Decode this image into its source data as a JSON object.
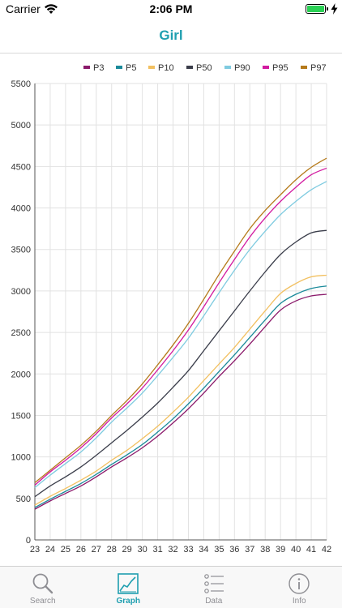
{
  "status_bar": {
    "carrier": "Carrier",
    "time": "2:06 PM"
  },
  "nav": {
    "title": "Girl"
  },
  "tabs": [
    {
      "label": "Search",
      "icon": "search-icon",
      "active": false
    },
    {
      "label": "Graph",
      "icon": "graph-icon",
      "active": true
    },
    {
      "label": "Data",
      "icon": "list-icon",
      "active": false
    },
    {
      "label": "Info",
      "icon": "info-icon",
      "active": false
    }
  ],
  "colors": {
    "accent": "#1f9fb0",
    "inactive": "#8e8e93"
  },
  "chart_data": {
    "type": "line",
    "xlim": [
      23,
      42
    ],
    "ylim": [
      0,
      5500
    ],
    "x_ticks": [
      23,
      24,
      25,
      26,
      27,
      28,
      29,
      30,
      31,
      32,
      33,
      34,
      35,
      36,
      37,
      38,
      39,
      40,
      41,
      42
    ],
    "y_ticks": [
      0,
      500,
      1000,
      1500,
      2000,
      2500,
      3000,
      3500,
      4000,
      4500,
      5000,
      5500
    ],
    "grid": true,
    "legend_position": "top",
    "x": [
      23,
      24,
      25,
      26,
      27,
      28,
      29,
      30,
      31,
      32,
      33,
      34,
      35,
      36,
      37,
      38,
      39,
      40,
      41,
      42
    ],
    "series": [
      {
        "name": "P3",
        "color": "#8b1a6b",
        "values": [
          370,
          470,
          560,
          650,
          760,
          880,
          990,
          1110,
          1250,
          1410,
          1580,
          1770,
          1970,
          2160,
          2360,
          2570,
          2770,
          2880,
          2940,
          2960
        ]
      },
      {
        "name": "P5",
        "color": "#1a8a9a",
        "values": [
          390,
          490,
          585,
          680,
          790,
          910,
          1025,
          1150,
          1300,
          1460,
          1640,
          1830,
          2030,
          2230,
          2440,
          2650,
          2850,
          2960,
          3030,
          3060
        ]
      },
      {
        "name": "P10",
        "color": "#f2c060",
        "values": [
          420,
          525,
          620,
          720,
          830,
          960,
          1080,
          1220,
          1370,
          1540,
          1720,
          1920,
          2120,
          2320,
          2540,
          2760,
          2970,
          3090,
          3170,
          3190
        ]
      },
      {
        "name": "P50",
        "color": "#3a3d4a",
        "values": [
          520,
          650,
          760,
          880,
          1020,
          1170,
          1320,
          1480,
          1650,
          1840,
          2040,
          2280,
          2520,
          2760,
          3000,
          3230,
          3440,
          3590,
          3700,
          3730
        ]
      },
      {
        "name": "P90",
        "color": "#7fcbe0",
        "values": [
          630,
          780,
          920,
          1060,
          1230,
          1420,
          1590,
          1770,
          1980,
          2200,
          2430,
          2700,
          2980,
          3250,
          3500,
          3720,
          3920,
          4080,
          4220,
          4320
        ]
      },
      {
        "name": "P95",
        "color": "#d21aa0",
        "values": [
          660,
          820,
          960,
          1110,
          1280,
          1470,
          1640,
          1830,
          2050,
          2280,
          2530,
          2810,
          3100,
          3380,
          3650,
          3880,
          4080,
          4250,
          4400,
          4480
        ]
      },
      {
        "name": "P97",
        "color": "#b57a1a",
        "values": [
          690,
          840,
          990,
          1140,
          1310,
          1500,
          1680,
          1880,
          2110,
          2350,
          2610,
          2900,
          3200,
          3480,
          3750,
          3970,
          4160,
          4340,
          4490,
          4600
        ]
      }
    ]
  }
}
